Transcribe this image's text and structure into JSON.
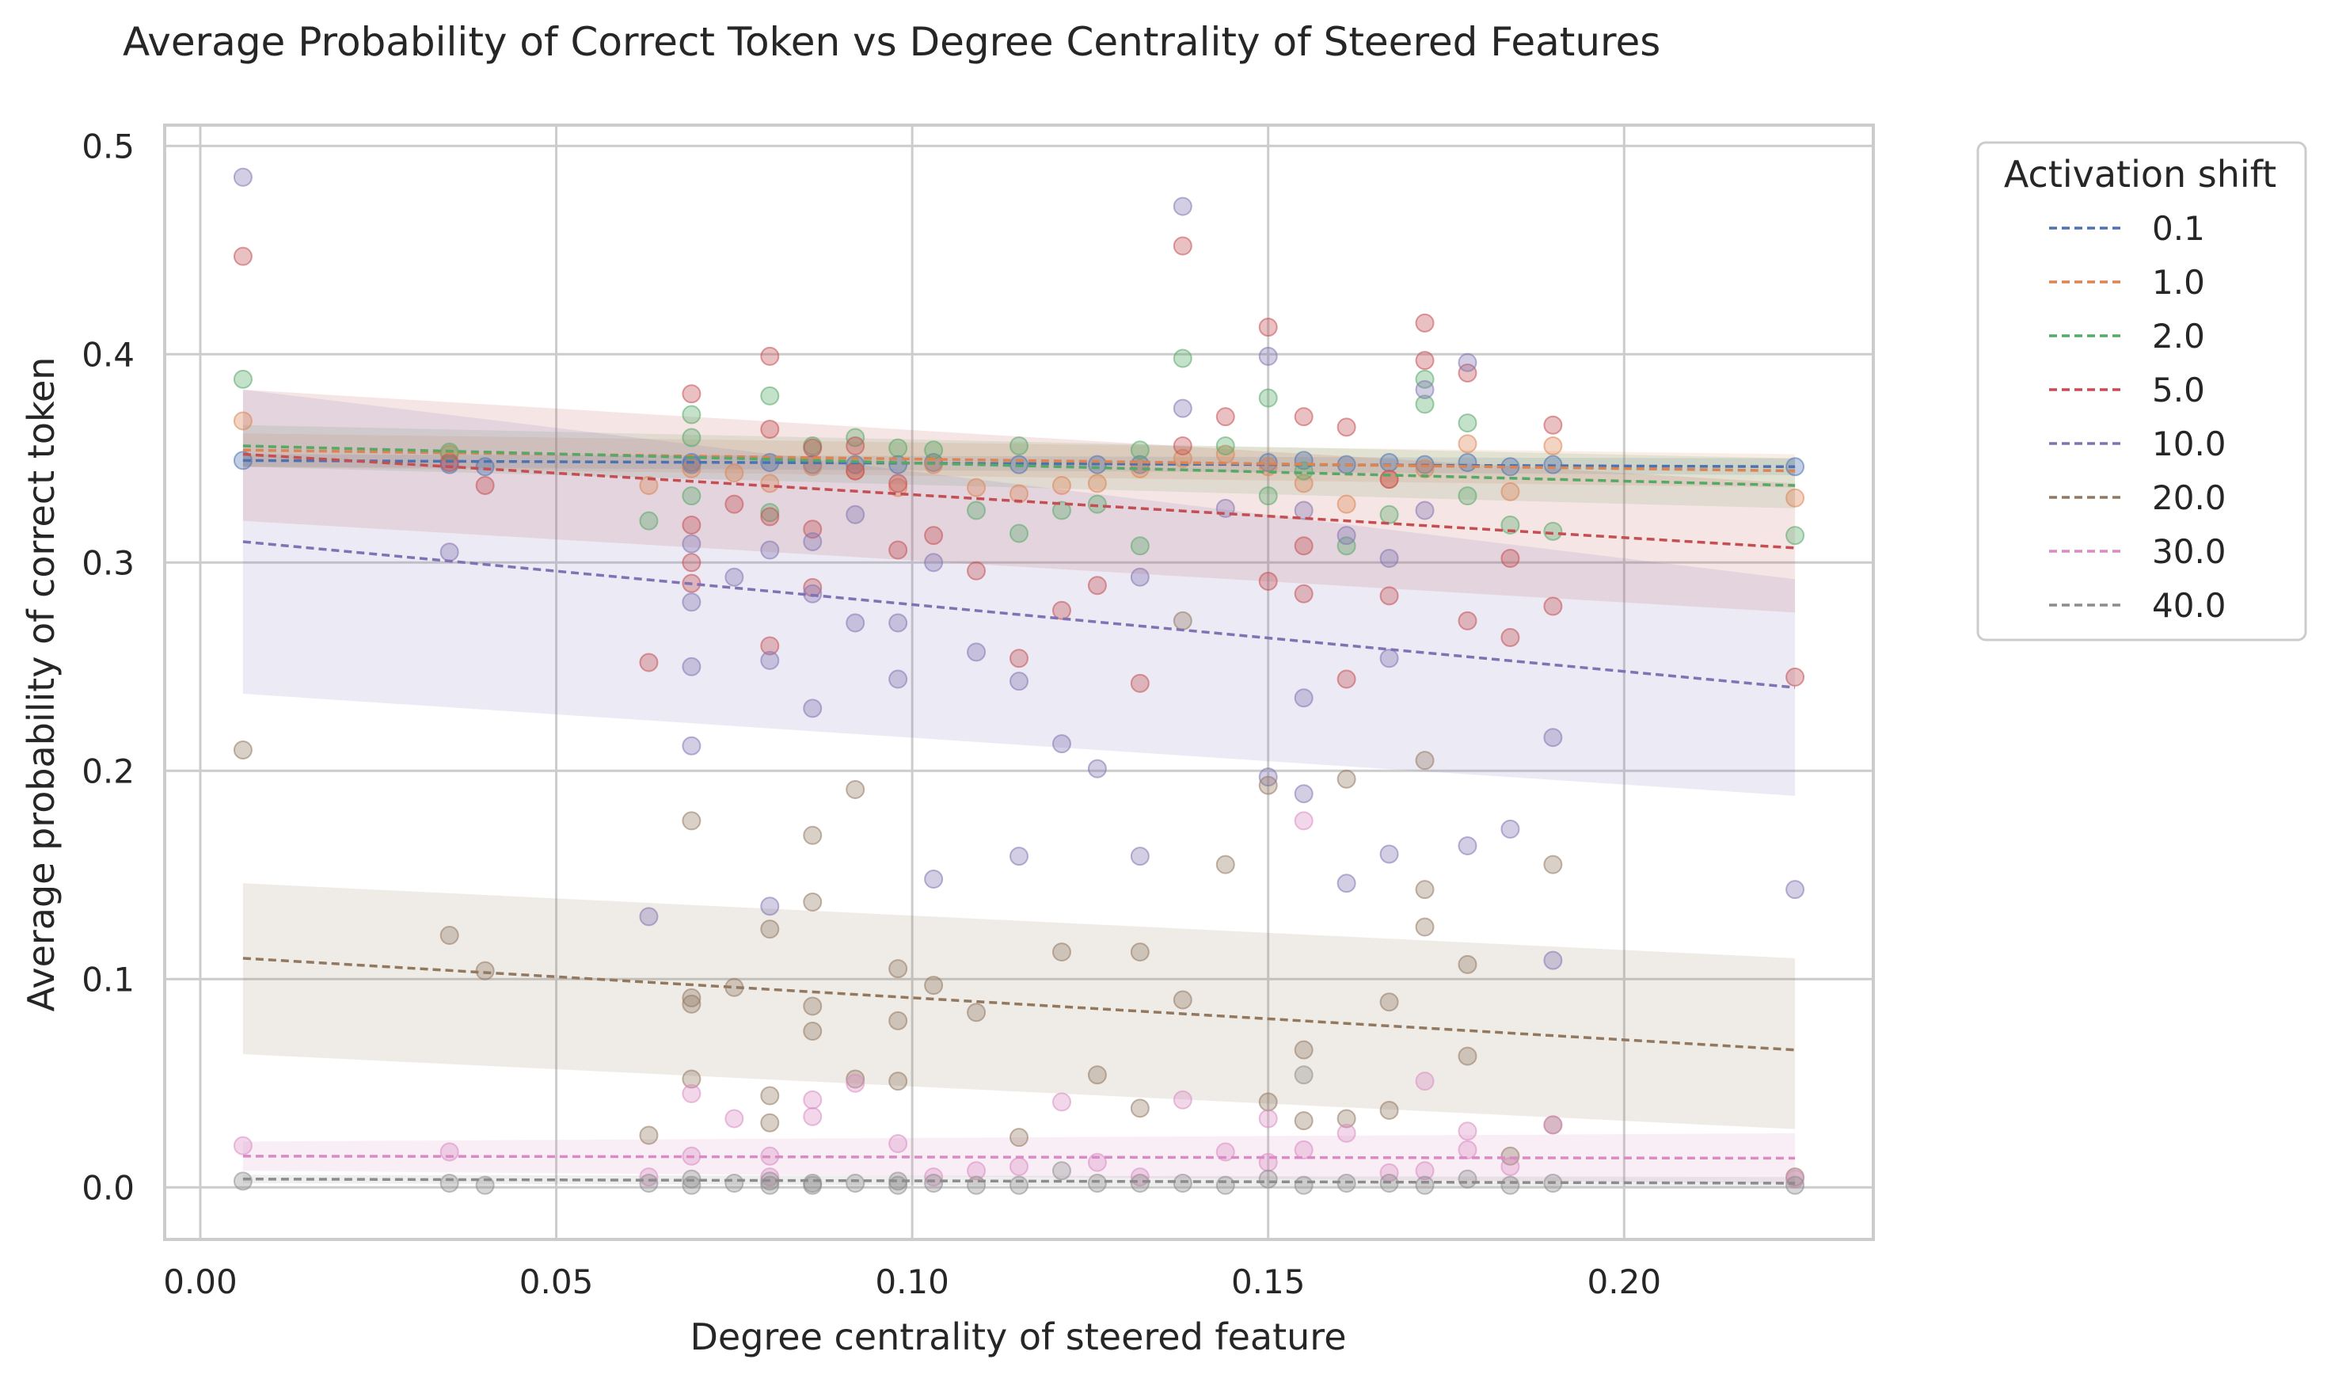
{
  "chart_data": {
    "type": "scatter",
    "title": "Average Probability of Correct Token vs Degree Centrality of Steered Features",
    "xlabel": "Degree centrality of steered feature",
    "ylabel": "Average probability of correct token",
    "xlim": [
      -0.005,
      0.235
    ],
    "ylim": [
      -0.025,
      0.51
    ],
    "xticks": [
      0.0,
      0.05,
      0.1,
      0.15,
      0.2
    ],
    "xtick_labels": [
      "0.00",
      "0.05",
      "0.10",
      "0.15",
      "0.20"
    ],
    "yticks": [
      0.0,
      0.1,
      0.2,
      0.3,
      0.4,
      0.5
    ],
    "ytick_labels": [
      "0.0",
      "0.1",
      "0.2",
      "0.3",
      "0.4",
      "0.5"
    ],
    "grid": true,
    "legend": {
      "title": "Activation shift",
      "placement": "outside-right"
    },
    "series": [
      {
        "name": "0.1",
        "color": "#4c72b0",
        "trend": {
          "x": [
            0.006,
            0.224
          ],
          "y": [
            0.349,
            0.346
          ]
        },
        "band": {
          "x": [
            0.006,
            0.224
          ],
          "upper": [
            0.352,
            0.35
          ],
          "lower": [
            0.346,
            0.342
          ]
        },
        "x": [
          0.006,
          0.035,
          0.04,
          0.069,
          0.069,
          0.08,
          0.086,
          0.092,
          0.098,
          0.103,
          0.115,
          0.126,
          0.132,
          0.15,
          0.155,
          0.161,
          0.167,
          0.172,
          0.178,
          0.184,
          0.19,
          0.224
        ],
        "y": [
          0.349,
          0.347,
          0.346,
          0.348,
          0.347,
          0.348,
          0.347,
          0.347,
          0.347,
          0.348,
          0.347,
          0.347,
          0.347,
          0.348,
          0.349,
          0.347,
          0.348,
          0.347,
          0.348,
          0.346,
          0.347,
          0.346
        ]
      },
      {
        "name": "1.0",
        "color": "#dd8452",
        "trend": {
          "x": [
            0.006,
            0.224
          ],
          "y": [
            0.354,
            0.344
          ]
        },
        "band": {
          "x": [
            0.006,
            0.224
          ],
          "upper": [
            0.362,
            0.352
          ],
          "lower": [
            0.346,
            0.336
          ]
        },
        "x": [
          0.006,
          0.035,
          0.063,
          0.069,
          0.075,
          0.08,
          0.086,
          0.092,
          0.098,
          0.103,
          0.109,
          0.115,
          0.121,
          0.126,
          0.132,
          0.138,
          0.144,
          0.15,
          0.155,
          0.161,
          0.167,
          0.172,
          0.178,
          0.184,
          0.19,
          0.224
        ],
        "y": [
          0.368,
          0.352,
          0.337,
          0.345,
          0.343,
          0.338,
          0.346,
          0.344,
          0.336,
          0.347,
          0.336,
          0.333,
          0.337,
          0.338,
          0.345,
          0.35,
          0.352,
          0.346,
          0.338,
          0.328,
          0.34,
          0.345,
          0.357,
          0.334,
          0.356,
          0.331
        ]
      },
      {
        "name": "2.0",
        "color": "#55a868",
        "trend": {
          "x": [
            0.006,
            0.224
          ],
          "y": [
            0.356,
            0.337
          ]
        },
        "band": {
          "x": [
            0.006,
            0.224
          ],
          "upper": [
            0.366,
            0.35
          ],
          "lower": [
            0.346,
            0.326
          ]
        },
        "x": [
          0.006,
          0.035,
          0.063,
          0.069,
          0.069,
          0.069,
          0.08,
          0.08,
          0.086,
          0.092,
          0.098,
          0.103,
          0.109,
          0.115,
          0.115,
          0.121,
          0.126,
          0.132,
          0.132,
          0.138,
          0.144,
          0.15,
          0.15,
          0.155,
          0.161,
          0.167,
          0.172,
          0.172,
          0.178,
          0.178,
          0.184,
          0.19,
          0.224
        ],
        "y": [
          0.388,
          0.353,
          0.32,
          0.371,
          0.36,
          0.332,
          0.38,
          0.324,
          0.356,
          0.36,
          0.355,
          0.354,
          0.325,
          0.356,
          0.314,
          0.325,
          0.328,
          0.354,
          0.308,
          0.398,
          0.356,
          0.379,
          0.332,
          0.344,
          0.308,
          0.323,
          0.376,
          0.388,
          0.367,
          0.332,
          0.318,
          0.315,
          0.313
        ]
      },
      {
        "name": "5.0",
        "color": "#c44e52",
        "trend": {
          "x": [
            0.006,
            0.224
          ],
          "y": [
            0.352,
            0.307
          ]
        },
        "band": {
          "x": [
            0.006,
            0.224
          ],
          "upper": [
            0.383,
            0.338
          ],
          "lower": [
            0.32,
            0.276
          ]
        },
        "x": [
          0.006,
          0.035,
          0.04,
          0.063,
          0.069,
          0.069,
          0.069,
          0.069,
          0.075,
          0.08,
          0.08,
          0.08,
          0.08,
          0.086,
          0.086,
          0.086,
          0.092,
          0.092,
          0.098,
          0.098,
          0.103,
          0.109,
          0.115,
          0.121,
          0.126,
          0.132,
          0.138,
          0.138,
          0.144,
          0.15,
          0.15,
          0.155,
          0.155,
          0.155,
          0.161,
          0.161,
          0.167,
          0.167,
          0.172,
          0.172,
          0.178,
          0.178,
          0.184,
          0.184,
          0.19,
          0.19,
          0.224
        ],
        "y": [
          0.447,
          0.348,
          0.337,
          0.252,
          0.381,
          0.318,
          0.3,
          0.29,
          0.328,
          0.399,
          0.364,
          0.322,
          0.26,
          0.355,
          0.316,
          0.288,
          0.356,
          0.344,
          0.338,
          0.306,
          0.313,
          0.296,
          0.254,
          0.277,
          0.289,
          0.242,
          0.452,
          0.356,
          0.37,
          0.413,
          0.291,
          0.37,
          0.308,
          0.285,
          0.365,
          0.244,
          0.34,
          0.284,
          0.415,
          0.397,
          0.391,
          0.272,
          0.302,
          0.264,
          0.366,
          0.279,
          0.245
        ]
      },
      {
        "name": "10.0",
        "color": "#8172b3",
        "trend": {
          "x": [
            0.006,
            0.224
          ],
          "y": [
            0.31,
            0.24
          ]
        },
        "band": {
          "x": [
            0.006,
            0.224
          ],
          "upper": [
            0.383,
            0.292
          ],
          "lower": [
            0.237,
            0.188
          ]
        },
        "x": [
          0.006,
          0.035,
          0.063,
          0.069,
          0.069,
          0.069,
          0.069,
          0.075,
          0.08,
          0.08,
          0.08,
          0.086,
          0.086,
          0.086,
          0.092,
          0.092,
          0.098,
          0.098,
          0.103,
          0.103,
          0.109,
          0.115,
          0.115,
          0.121,
          0.126,
          0.132,
          0.132,
          0.138,
          0.138,
          0.144,
          0.15,
          0.15,
          0.155,
          0.155,
          0.155,
          0.161,
          0.161,
          0.167,
          0.167,
          0.167,
          0.172,
          0.172,
          0.178,
          0.178,
          0.184,
          0.19,
          0.19,
          0.224
        ],
        "y": [
          0.485,
          0.305,
          0.13,
          0.309,
          0.281,
          0.25,
          0.212,
          0.293,
          0.306,
          0.253,
          0.135,
          0.31,
          0.285,
          0.23,
          0.323,
          0.271,
          0.271,
          0.244,
          0.3,
          0.148,
          0.257,
          0.243,
          0.159,
          0.213,
          0.201,
          0.293,
          0.159,
          0.471,
          0.374,
          0.326,
          0.399,
          0.197,
          0.325,
          0.235,
          0.189,
          0.313,
          0.146,
          0.302,
          0.254,
          0.16,
          0.325,
          0.383,
          0.396,
          0.164,
          0.172,
          0.216,
          0.109,
          0.143
        ]
      },
      {
        "name": "20.0",
        "color": "#937860",
        "trend": {
          "x": [
            0.006,
            0.224
          ],
          "y": [
            0.11,
            0.066
          ]
        },
        "band": {
          "x": [
            0.006,
            0.224
          ],
          "upper": [
            0.146,
            0.11
          ],
          "lower": [
            0.064,
            0.028
          ]
        },
        "x": [
          0.006,
          0.035,
          0.04,
          0.063,
          0.069,
          0.069,
          0.069,
          0.069,
          0.075,
          0.08,
          0.08,
          0.08,
          0.086,
          0.086,
          0.086,
          0.086,
          0.092,
          0.092,
          0.098,
          0.098,
          0.098,
          0.103,
          0.109,
          0.115,
          0.121,
          0.126,
          0.132,
          0.132,
          0.138,
          0.138,
          0.144,
          0.15,
          0.15,
          0.155,
          0.155,
          0.161,
          0.161,
          0.167,
          0.167,
          0.172,
          0.172,
          0.172,
          0.178,
          0.178,
          0.184,
          0.19,
          0.19,
          0.224
        ],
        "y": [
          0.21,
          0.121,
          0.104,
          0.025,
          0.176,
          0.091,
          0.088,
          0.052,
          0.096,
          0.124,
          0.044,
          0.031,
          0.169,
          0.137,
          0.087,
          0.075,
          0.191,
          0.052,
          0.105,
          0.08,
          0.051,
          0.097,
          0.084,
          0.024,
          0.113,
          0.054,
          0.113,
          0.038,
          0.272,
          0.09,
          0.155,
          0.193,
          0.041,
          0.066,
          0.032,
          0.196,
          0.033,
          0.089,
          0.037,
          0.205,
          0.143,
          0.125,
          0.107,
          0.063,
          0.015,
          0.155,
          0.03,
          0.005
        ]
      },
      {
        "name": "30.0",
        "color": "#da8bc3",
        "trend": {
          "x": [
            0.006,
            0.224
          ],
          "y": [
            0.015,
            0.014
          ]
        },
        "band": {
          "x": [
            0.006,
            0.224
          ],
          "upper": [
            0.022,
            0.026
          ],
          "lower": [
            0.008,
            0.002
          ]
        },
        "x": [
          0.006,
          0.035,
          0.063,
          0.069,
          0.069,
          0.075,
          0.08,
          0.08,
          0.086,
          0.086,
          0.092,
          0.098,
          0.103,
          0.109,
          0.115,
          0.121,
          0.126,
          0.132,
          0.138,
          0.144,
          0.15,
          0.15,
          0.155,
          0.155,
          0.161,
          0.167,
          0.172,
          0.172,
          0.178,
          0.178,
          0.184,
          0.19,
          0.224
        ],
        "y": [
          0.02,
          0.017,
          0.005,
          0.045,
          0.015,
          0.033,
          0.015,
          0.005,
          0.042,
          0.034,
          0.05,
          0.021,
          0.005,
          0.008,
          0.01,
          0.041,
          0.012,
          0.005,
          0.042,
          0.017,
          0.033,
          0.012,
          0.176,
          0.018,
          0.026,
          0.007,
          0.051,
          0.008,
          0.027,
          0.018,
          0.01,
          0.03,
          0.004
        ]
      },
      {
        "name": "40.0",
        "color": "#8c8c8c",
        "trend": {
          "x": [
            0.006,
            0.224
          ],
          "y": [
            0.004,
            0.002
          ]
        },
        "band": {
          "x": [
            0.006,
            0.224
          ],
          "upper": [
            0.006,
            0.005
          ],
          "lower": [
            0.002,
            0.0
          ]
        },
        "x": [
          0.006,
          0.035,
          0.04,
          0.063,
          0.069,
          0.069,
          0.075,
          0.08,
          0.08,
          0.086,
          0.086,
          0.092,
          0.098,
          0.098,
          0.103,
          0.109,
          0.115,
          0.121,
          0.126,
          0.132,
          0.138,
          0.144,
          0.15,
          0.155,
          0.155,
          0.161,
          0.167,
          0.172,
          0.178,
          0.184,
          0.19,
          0.224
        ],
        "y": [
          0.003,
          0.002,
          0.001,
          0.002,
          0.004,
          0.001,
          0.002,
          0.003,
          0.001,
          0.002,
          0.001,
          0.002,
          0.003,
          0.001,
          0.002,
          0.001,
          0.001,
          0.008,
          0.002,
          0.002,
          0.002,
          0.001,
          0.004,
          0.054,
          0.001,
          0.002,
          0.002,
          0.001,
          0.004,
          0.001,
          0.002,
          0.001
        ]
      }
    ]
  }
}
